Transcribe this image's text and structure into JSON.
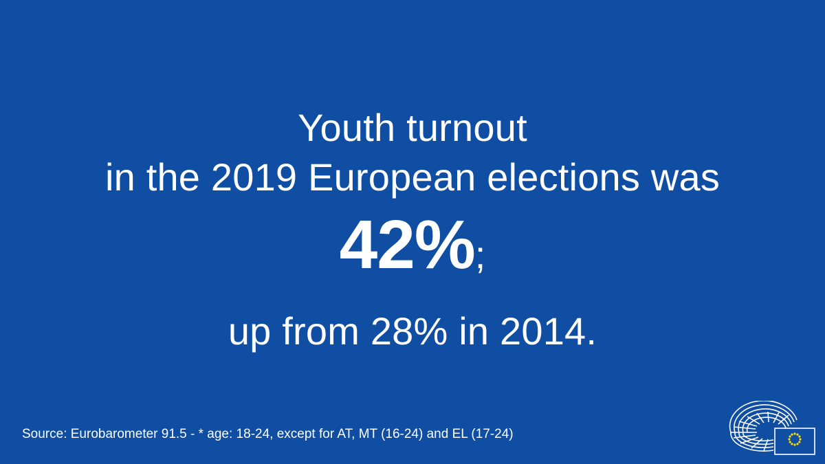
{
  "headline": {
    "line1": "Youth turnout",
    "line2": "in the 2019 European elections was",
    "highlight_value": "42%",
    "highlight_suffix": ";",
    "line4": "up from 28% in 2014."
  },
  "footer": {
    "source": "Source: Eurobarometer 91.5 - * age: 18-24, except for AT, MT (16-24) and EL (17-24)"
  },
  "logo": {
    "icon": "european-parliament-hemicycle-logo",
    "flag_icon": "eu-flag-icon"
  },
  "colors": {
    "background": "#0f4ea3",
    "text": "#ffffff",
    "flag_blue": "#0f4ea3",
    "flag_stars": "#ffdd00"
  }
}
